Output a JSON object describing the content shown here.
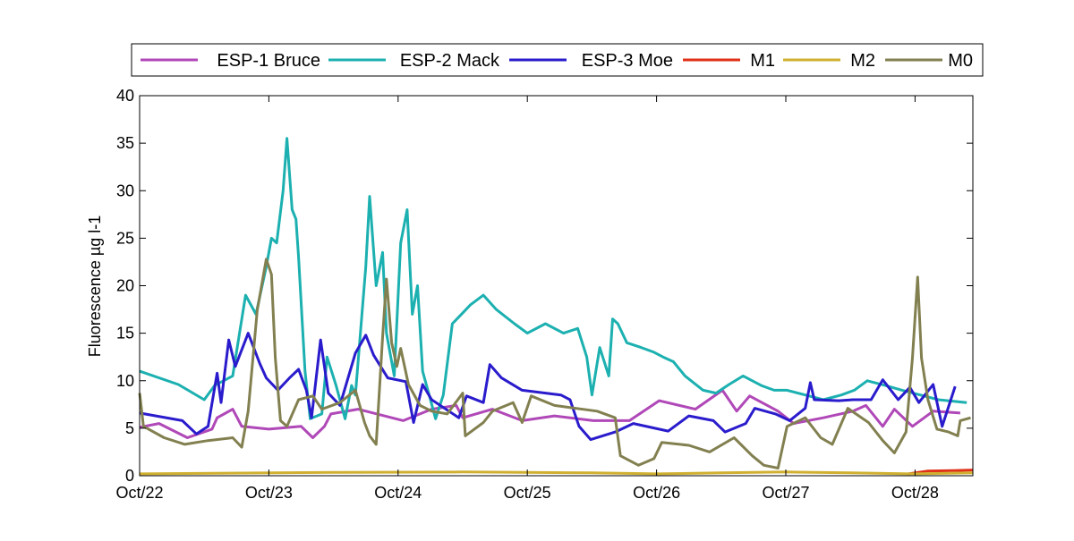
{
  "chart_data": {
    "type": "line",
    "title": "",
    "xlabel": "",
    "ylabel": "Fluorescence µg l-1",
    "xlim_days": [
      0,
      6.45
    ],
    "ylim": [
      0,
      40
    ],
    "yticks": [
      0,
      5,
      10,
      15,
      20,
      25,
      30,
      35,
      40
    ],
    "xtick_labels": [
      "Oct/22",
      "Oct/23",
      "Oct/24",
      "Oct/25",
      "Oct/26",
      "Oct/27",
      "Oct/28"
    ],
    "x_units": "days since Oct/22",
    "grid": false,
    "legend_position": "top (outside, horizontal)",
    "series": [
      {
        "name": "ESP-1 Bruce",
        "color": "#b048b8",
        "points": [
          [
            0,
            5.1
          ],
          [
            0.15,
            5.5
          ],
          [
            0.37,
            4
          ],
          [
            0.56,
            4.9
          ],
          [
            0.6,
            6.1
          ],
          [
            0.72,
            7
          ],
          [
            0.79,
            5.2
          ],
          [
            1.0,
            4.9
          ],
          [
            1.25,
            5.2
          ],
          [
            1.34,
            4
          ],
          [
            1.43,
            5.2
          ],
          [
            1.48,
            6.5
          ],
          [
            1.69,
            7
          ],
          [
            2.04,
            5.8
          ],
          [
            2.26,
            7
          ],
          [
            2.45,
            7.4
          ],
          [
            2.5,
            6.1
          ],
          [
            2.73,
            7
          ],
          [
            2.96,
            5.8
          ],
          [
            3.21,
            6.3
          ],
          [
            3.51,
            5.8
          ],
          [
            3.79,
            5.8
          ],
          [
            4.02,
            7.9
          ],
          [
            4.3,
            7
          ],
          [
            4.51,
            9
          ],
          [
            4.62,
            6.8
          ],
          [
            4.72,
            8.4
          ],
          [
            4.94,
            6.8
          ],
          [
            5.06,
            5.5
          ],
          [
            5.29,
            6.1
          ],
          [
            5.52,
            6.8
          ],
          [
            5.62,
            7.4
          ],
          [
            5.75,
            5.2
          ],
          [
            5.84,
            7
          ],
          [
            5.98,
            5.2
          ],
          [
            6.14,
            6.8
          ],
          [
            6.35,
            6.6
          ]
        ]
      },
      {
        "name": "ESP-2 Mack",
        "color": "#1cb0b0",
        "points": [
          [
            0,
            11
          ],
          [
            0.3,
            9.6
          ],
          [
            0.5,
            8
          ],
          [
            0.58,
            9.5
          ],
          [
            0.72,
            10.5
          ],
          [
            0.82,
            19
          ],
          [
            0.9,
            17
          ],
          [
            0.98,
            22
          ],
          [
            1.02,
            25
          ],
          [
            1.06,
            24.5
          ],
          [
            1.11,
            30
          ],
          [
            1.14,
            35.5
          ],
          [
            1.18,
            28
          ],
          [
            1.21,
            27
          ],
          [
            1.23,
            23
          ],
          [
            1.28,
            11
          ],
          [
            1.32,
            6
          ],
          [
            1.41,
            6.5
          ],
          [
            1.45,
            12.5
          ],
          [
            1.52,
            9.5
          ],
          [
            1.59,
            6
          ],
          [
            1.64,
            9.5
          ],
          [
            1.67,
            8.5
          ],
          [
            1.75,
            22
          ],
          [
            1.78,
            29.4
          ],
          [
            1.83,
            20
          ],
          [
            1.88,
            23.5
          ],
          [
            1.91,
            15
          ],
          [
            1.97,
            10.5
          ],
          [
            2.02,
            24.5
          ],
          [
            2.07,
            28
          ],
          [
            2.11,
            17
          ],
          [
            2.15,
            20
          ],
          [
            2.19,
            11
          ],
          [
            2.24,
            8.5
          ],
          [
            2.29,
            6
          ],
          [
            2.35,
            8.5
          ],
          [
            2.42,
            16
          ],
          [
            2.49,
            17
          ],
          [
            2.56,
            18
          ],
          [
            2.66,
            19
          ],
          [
            2.76,
            17.5
          ],
          [
            2.9,
            16
          ],
          [
            3.0,
            15
          ],
          [
            3.14,
            16
          ],
          [
            3.28,
            15
          ],
          [
            3.39,
            15.5
          ],
          [
            3.46,
            12.5
          ],
          [
            3.5,
            8.5
          ],
          [
            3.56,
            13.5
          ],
          [
            3.63,
            10.5
          ],
          [
            3.66,
            16.5
          ],
          [
            3.7,
            16
          ],
          [
            3.77,
            14
          ],
          [
            3.88,
            13.5
          ],
          [
            3.98,
            13
          ],
          [
            4.05,
            12.5
          ],
          [
            4.13,
            12
          ],
          [
            4.22,
            10.5
          ],
          [
            4.36,
            9
          ],
          [
            4.46,
            8.7
          ],
          [
            4.56,
            9.6
          ],
          [
            4.67,
            10.5
          ],
          [
            4.81,
            9.5
          ],
          [
            4.91,
            9
          ],
          [
            5.01,
            9
          ],
          [
            5.15,
            8.5
          ],
          [
            5.29,
            8
          ],
          [
            5.43,
            8.5
          ],
          [
            5.53,
            9
          ],
          [
            5.63,
            10
          ],
          [
            5.77,
            9.5
          ],
          [
            5.9,
            9
          ],
          [
            6.04,
            8.5
          ],
          [
            6.18,
            8
          ],
          [
            6.4,
            7.7
          ]
        ]
      },
      {
        "name": "ESP-3 Moe",
        "color": "#2a1ccc",
        "points": [
          [
            0,
            6.6
          ],
          [
            0.33,
            5.8
          ],
          [
            0.44,
            4.4
          ],
          [
            0.53,
            5.2
          ],
          [
            0.6,
            10.8
          ],
          [
            0.63,
            7.7
          ],
          [
            0.69,
            14.3
          ],
          [
            0.74,
            11.5
          ],
          [
            0.84,
            15
          ],
          [
            0.93,
            11.8
          ],
          [
            0.98,
            10.3
          ],
          [
            1.07,
            9
          ],
          [
            1.16,
            10.3
          ],
          [
            1.23,
            11.2
          ],
          [
            1.29,
            9
          ],
          [
            1.33,
            6.1
          ],
          [
            1.4,
            14.3
          ],
          [
            1.46,
            8.7
          ],
          [
            1.55,
            7.4
          ],
          [
            1.67,
            12.9
          ],
          [
            1.75,
            14.8
          ],
          [
            1.81,
            12.7
          ],
          [
            1.92,
            10.3
          ],
          [
            2.06,
            9.9
          ],
          [
            2.12,
            5.6
          ],
          [
            2.19,
            9.6
          ],
          [
            2.26,
            8
          ],
          [
            2.47,
            6.1
          ],
          [
            2.53,
            8.4
          ],
          [
            2.66,
            7.7
          ],
          [
            2.71,
            11.7
          ],
          [
            2.8,
            10.3
          ],
          [
            2.96,
            9
          ],
          [
            3.26,
            8.5
          ],
          [
            3.33,
            8
          ],
          [
            3.4,
            5.2
          ],
          [
            3.49,
            3.8
          ],
          [
            3.68,
            4.6
          ],
          [
            3.82,
            5.5
          ],
          [
            4.09,
            4.7
          ],
          [
            4.25,
            6.3
          ],
          [
            4.44,
            5.8
          ],
          [
            4.53,
            4.6
          ],
          [
            4.69,
            5.5
          ],
          [
            4.76,
            7.1
          ],
          [
            4.92,
            6.5
          ],
          [
            5.03,
            5.8
          ],
          [
            5.15,
            7.1
          ],
          [
            5.19,
            9.8
          ],
          [
            5.22,
            8
          ],
          [
            5.41,
            7.9
          ],
          [
            5.52,
            8
          ],
          [
            5.66,
            8
          ],
          [
            5.75,
            10.1
          ],
          [
            5.87,
            8
          ],
          [
            5.96,
            9.3
          ],
          [
            6.03,
            7.7
          ],
          [
            6.14,
            9.6
          ],
          [
            6.21,
            5.2
          ],
          [
            6.31,
            9.4
          ]
        ]
      },
      {
        "name": "M1",
        "color": "#e03018",
        "points": [
          [
            5.95,
            0.2
          ],
          [
            6.1,
            0.5
          ],
          [
            6.3,
            0.55
          ],
          [
            6.45,
            0.6
          ]
        ]
      },
      {
        "name": "M2",
        "color": "#d0b030",
        "points": [
          [
            0,
            0.2
          ],
          [
            1.5,
            0.35
          ],
          [
            2.5,
            0.4
          ],
          [
            3.5,
            0.3
          ],
          [
            4,
            0.2
          ],
          [
            4.5,
            0.3
          ],
          [
            5,
            0.4
          ],
          [
            5.5,
            0.3
          ],
          [
            6,
            0.2
          ],
          [
            6.45,
            0.3
          ]
        ]
      },
      {
        "name": "M0",
        "color": "#828050",
        "points": [
          [
            0,
            8.7
          ],
          [
            0.03,
            5.2
          ],
          [
            0.19,
            4
          ],
          [
            0.35,
            3.3
          ],
          [
            0.53,
            3.7
          ],
          [
            0.72,
            4
          ],
          [
            0.79,
            3
          ],
          [
            0.84,
            6.8
          ],
          [
            0.91,
            17.4
          ],
          [
            0.98,
            22.8
          ],
          [
            1.02,
            21.2
          ],
          [
            1.05,
            12.4
          ],
          [
            1.09,
            5.8
          ],
          [
            1.14,
            5.2
          ],
          [
            1.23,
            8
          ],
          [
            1.34,
            8.4
          ],
          [
            1.41,
            7
          ],
          [
            1.55,
            7.7
          ],
          [
            1.67,
            9
          ],
          [
            1.74,
            5.6
          ],
          [
            1.78,
            4.2
          ],
          [
            1.83,
            3.3
          ],
          [
            1.88,
            14.6
          ],
          [
            1.91,
            20.7
          ],
          [
            1.95,
            14
          ],
          [
            1.99,
            11.5
          ],
          [
            2.02,
            13.4
          ],
          [
            2.08,
            9.6
          ],
          [
            2.17,
            7.4
          ],
          [
            2.26,
            6.8
          ],
          [
            2.38,
            6.5
          ],
          [
            2.5,
            8.7
          ],
          [
            2.52,
            4.2
          ],
          [
            2.66,
            5.6
          ],
          [
            2.73,
            6.8
          ],
          [
            2.89,
            7.7
          ],
          [
            2.96,
            5.6
          ],
          [
            3.03,
            8.4
          ],
          [
            3.21,
            7.4
          ],
          [
            3.54,
            6.8
          ],
          [
            3.68,
            6.1
          ],
          [
            3.72,
            2.1
          ],
          [
            3.86,
            1.1
          ],
          [
            3.98,
            1.8
          ],
          [
            4.04,
            3.5
          ],
          [
            4.25,
            3.2
          ],
          [
            4.41,
            2.5
          ],
          [
            4.6,
            4
          ],
          [
            4.74,
            2.1
          ],
          [
            4.83,
            1.1
          ],
          [
            4.94,
            0.8
          ],
          [
            5.01,
            5.2
          ],
          [
            5.15,
            6.1
          ],
          [
            5.27,
            4
          ],
          [
            5.36,
            3.3
          ],
          [
            5.48,
            7.1
          ],
          [
            5.64,
            5.6
          ],
          [
            5.75,
            3.7
          ],
          [
            5.84,
            2.4
          ],
          [
            5.93,
            4.6
          ],
          [
            5.98,
            12.4
          ],
          [
            6.02,
            20.9
          ],
          [
            6.05,
            12.4
          ],
          [
            6.1,
            8
          ],
          [
            6.17,
            4.9
          ],
          [
            6.26,
            4.6
          ],
          [
            6.33,
            4.2
          ],
          [
            6.35,
            5.8
          ],
          [
            6.43,
            6.1
          ]
        ]
      }
    ]
  }
}
